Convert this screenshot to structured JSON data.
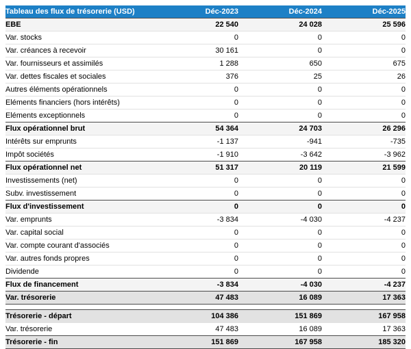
{
  "accent_color": "#1d80c6",
  "total_row_bg": "#e2e2e2",
  "subtotal_row_bg": "#f4f4f4",
  "table": {
    "title": "Tableau des flux de trésorerie (USD)",
    "columns": [
      "Déc-2023",
      "Déc-2024",
      "Déc-2025"
    ],
    "rows": [
      {
        "label": "EBE",
        "values": [
          "22 540",
          "24 028",
          "25 596"
        ],
        "style": "subtotal"
      },
      {
        "label": "Var. stocks",
        "values": [
          "0",
          "0",
          "0"
        ],
        "style": "normal"
      },
      {
        "label": "Var. créances à recevoir",
        "values": [
          "30 161",
          "0",
          "0"
        ],
        "style": "normal"
      },
      {
        "label": "Var. fournisseurs et assimilés",
        "values": [
          "1 288",
          "650",
          "675"
        ],
        "style": "normal"
      },
      {
        "label": "Var. dettes fiscales et sociales",
        "values": [
          "376",
          "25",
          "26"
        ],
        "style": "normal"
      },
      {
        "label": "Autres éléments opérationnels",
        "values": [
          "0",
          "0",
          "0"
        ],
        "style": "normal"
      },
      {
        "label": "Eléments financiers (hors intérêts)",
        "values": [
          "0",
          "0",
          "0"
        ],
        "style": "normal"
      },
      {
        "label": "Eléments exceptionnels",
        "values": [
          "0",
          "0",
          "0"
        ],
        "style": "normal"
      },
      {
        "label": "Flux opérationnel brut",
        "values": [
          "54 364",
          "24 703",
          "26 296"
        ],
        "style": "subtotal"
      },
      {
        "label": "Intérêts sur emprunts",
        "values": [
          "-1 137",
          "-941",
          "-735"
        ],
        "style": "normal"
      },
      {
        "label": "Impôt sociétés",
        "values": [
          "-1 910",
          "-3 642",
          "-3 962"
        ],
        "style": "normal"
      },
      {
        "label": "Flux opérationnel net",
        "values": [
          "51 317",
          "20 119",
          "21 599"
        ],
        "style": "subtotal"
      },
      {
        "label": "Investissements (net)",
        "values": [
          "0",
          "0",
          "0"
        ],
        "style": "normal"
      },
      {
        "label": "Subv. investissement",
        "values": [
          "0",
          "0",
          "0"
        ],
        "style": "normal"
      },
      {
        "label": "Flux d'investissement",
        "values": [
          "0",
          "0",
          "0"
        ],
        "style": "subtotal"
      },
      {
        "label": "Var. emprunts",
        "values": [
          "-3 834",
          "-4 030",
          "-4 237"
        ],
        "style": "normal"
      },
      {
        "label": "Var. capital social",
        "values": [
          "0",
          "0",
          "0"
        ],
        "style": "normal"
      },
      {
        "label": "Var. compte courant d'associés",
        "values": [
          "0",
          "0",
          "0"
        ],
        "style": "normal"
      },
      {
        "label": "Var. autres fonds propres",
        "values": [
          "0",
          "0",
          "0"
        ],
        "style": "normal"
      },
      {
        "label": "Dividende",
        "values": [
          "0",
          "0",
          "0"
        ],
        "style": "normal"
      },
      {
        "label": "Flux de financement",
        "values": [
          "-3 834",
          "-4 030",
          "-4 237"
        ],
        "style": "subtotal"
      },
      {
        "label": "Var. trésorerie",
        "values": [
          "47 483",
          "16 089",
          "17 363"
        ],
        "style": "total_end"
      },
      {
        "label": "",
        "values": [
          "",
          "",
          ""
        ],
        "style": "spacer"
      },
      {
        "label": "Trésorerie - départ",
        "values": [
          "104 386",
          "151 869",
          "167 958"
        ],
        "style": "total"
      },
      {
        "label": "Var. trésorerie",
        "values": [
          "47 483",
          "16 089",
          "17 363"
        ],
        "style": "normal"
      },
      {
        "label": "Trésorerie - fin",
        "values": [
          "151 869",
          "167 958",
          "185 320"
        ],
        "style": "total_end"
      }
    ]
  }
}
